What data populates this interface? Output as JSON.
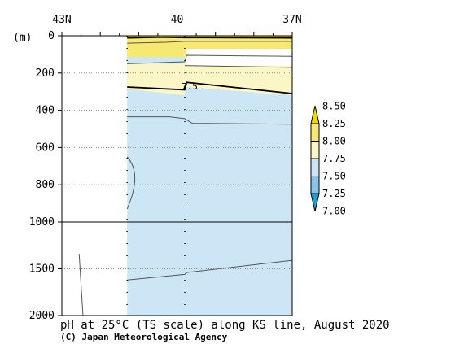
{
  "chart_data": {
    "type": "heatmap",
    "title": "pH at 25°C (TS scale) along KS line, August 2020",
    "credit": "(C) Japan Meteorological Agency",
    "y_unit": "(m)",
    "x_ticks": [
      "43N",
      "40",
      "37N"
    ],
    "x_tick_lat": [
      43,
      40,
      37
    ],
    "x_range_lat": [
      43,
      37
    ],
    "y_ticks": [
      "0",
      "200",
      "400",
      "600",
      "800",
      "1000",
      "1500",
      "2000"
    ],
    "y_tick_values": [
      0,
      200,
      400,
      600,
      800,
      1000,
      1500,
      2000
    ],
    "y_range_m": [
      0,
      2000
    ],
    "y_axis_note": "upper 0–1000 m and lower 1000–2000 m use different vertical scales",
    "data_extent_lat": [
      41.3,
      37
    ],
    "station_lats": [
      41.3,
      39.8
    ],
    "colorbar": {
      "labels": [
        "8.50",
        "8.25",
        "8.00",
        "7.75",
        "7.50",
        "7.25",
        "7.00"
      ],
      "levels": [
        8.5,
        8.25,
        8.0,
        7.75,
        7.5,
        7.25,
        7.0
      ],
      "colors": [
        "#f5d400",
        "#f7e871",
        "#fbf6c6",
        "#cde6f6",
        "#86c6ec",
        "#1c9fd8"
      ],
      "extends": "both"
    },
    "contour_labels": [
      "7.5"
    ],
    "sections": [
      {
        "depth_m": [
          0,
          10
        ],
        "ph_range": [
          8.25,
          8.5
        ]
      },
      {
        "depth_m": [
          10,
          120
        ],
        "ph_range": [
          8.0,
          8.25
        ]
      },
      {
        "depth_m": [
          120,
          300
        ],
        "ph_range": [
          7.75,
          8.0
        ]
      },
      {
        "depth_m": [
          300,
          2000
        ],
        "ph_range": [
          7.5,
          7.75
        ]
      }
    ]
  }
}
